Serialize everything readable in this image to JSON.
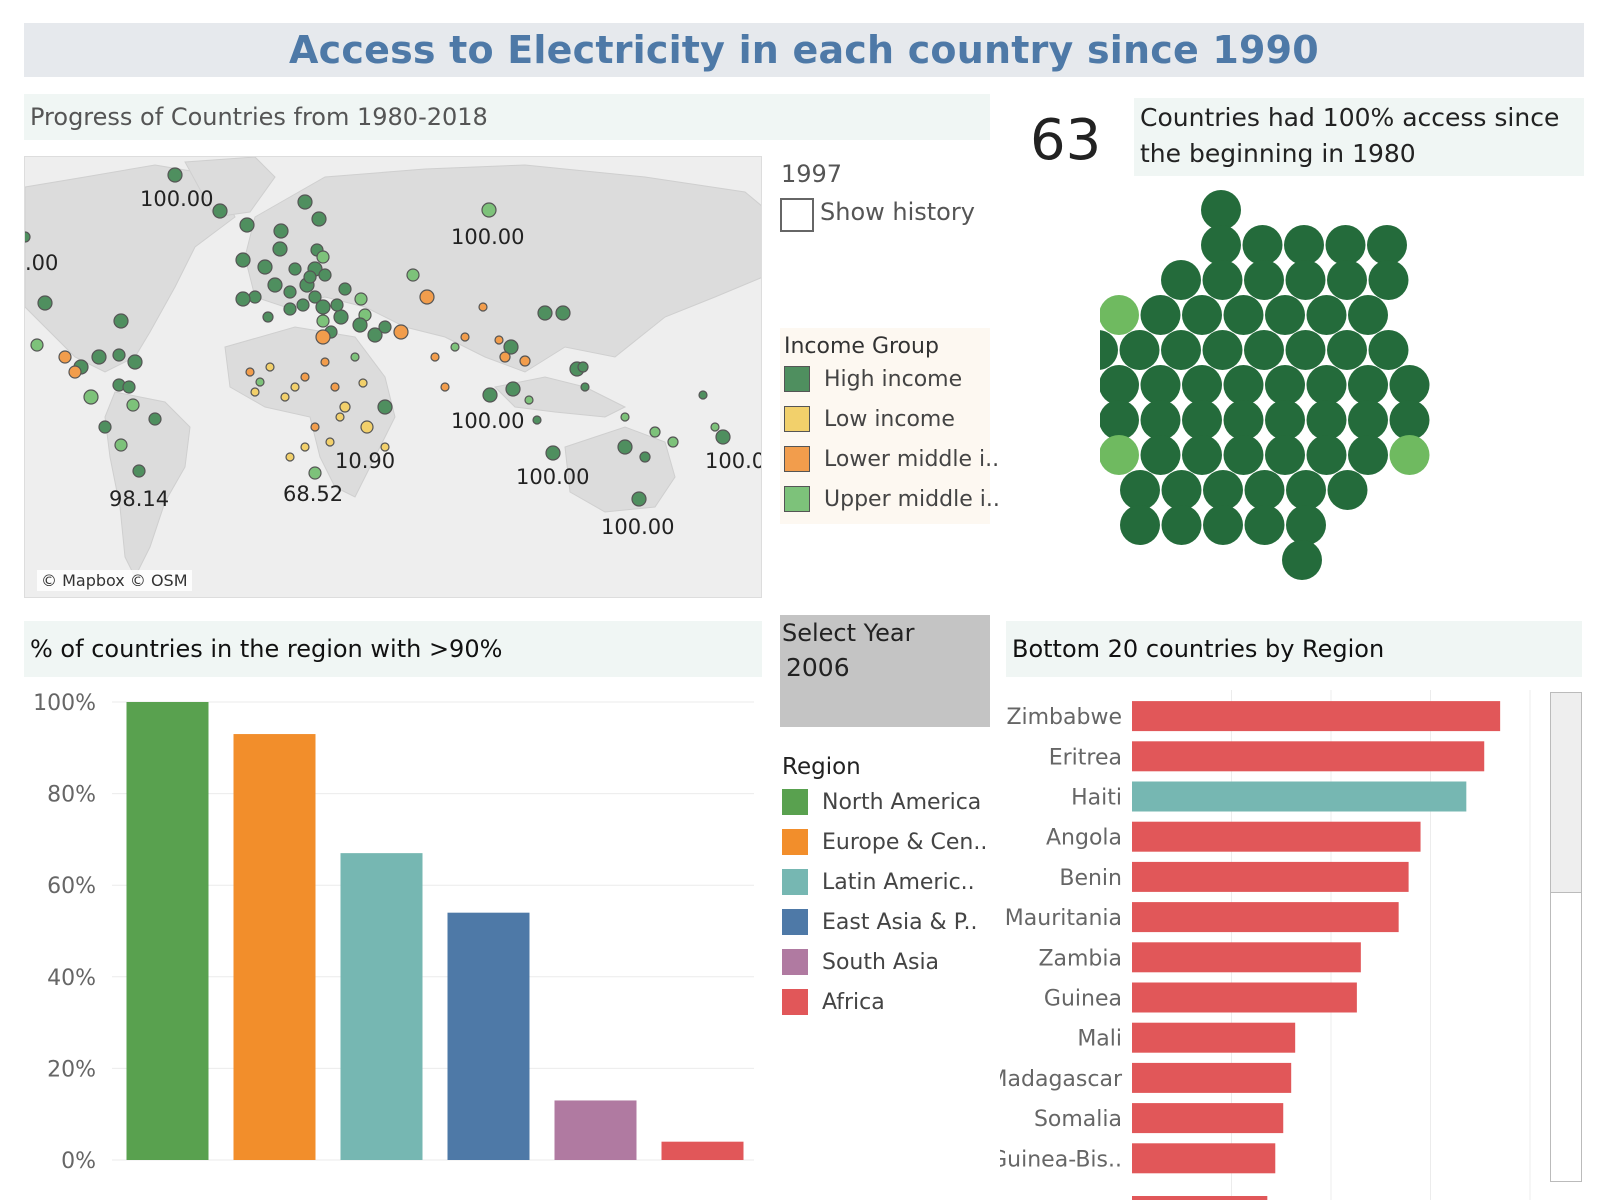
{
  "title": "Access to Electricity in each country since 1990",
  "map_panel": {
    "title": "Progress of Countries from 1980-2018",
    "year": "1997",
    "show_history_label": "Show history",
    "credit": "© Mapbox © OSM",
    "labels": [
      "100.00",
      ".00",
      "100.00",
      "100.00",
      "10.90",
      "68.52",
      "98.14",
      "100.00",
      "100.0",
      "100.00"
    ]
  },
  "income_legend": {
    "title": "Income Group",
    "items": [
      {
        "label": "High income",
        "color": "#4f8f5f"
      },
      {
        "label": "Low income",
        "color": "#f2d06b"
      },
      {
        "label": "Lower middle i..",
        "color": "#f29d4c"
      },
      {
        "label": "Upper middle i..",
        "color": "#7dc27a"
      }
    ]
  },
  "kpi": {
    "number": "63",
    "description": "Countries had 100% access since the beginning in 1980"
  },
  "bubble_colors": {
    "main": "#246b3b",
    "light": "#6fba60"
  },
  "select_year": {
    "label": "Select Year",
    "value": "2006"
  },
  "region_legend": {
    "title": "Region",
    "items": [
      {
        "label": "North America",
        "color": "#59a14f"
      },
      {
        "label": "Europe & Cen..",
        "color": "#f28e2b"
      },
      {
        "label": "Latin Americ..",
        "color": "#76b7b2"
      },
      {
        "label": "East Asia & P..",
        "color": "#4e79a7"
      },
      {
        "label": "South Asia",
        "color": "#b07aa1"
      },
      {
        "label": "Africa",
        "color": "#e15759"
      }
    ]
  },
  "chart_data": [
    {
      "type": "bar",
      "title": "% of countries in the region with >90%",
      "categories": [
        "North America",
        "Europe & Cen..",
        "Latin Americ..",
        "East Asia & P..",
        "South Asia",
        "Africa"
      ],
      "values": [
        100,
        93,
        67,
        54,
        13,
        4
      ],
      "colors": [
        "#59a14f",
        "#f28e2b",
        "#76b7b2",
        "#4e79a7",
        "#b07aa1",
        "#e15759"
      ],
      "ylim": [
        0,
        100
      ],
      "yticks": [
        "0%",
        "20%",
        "40%",
        "60%",
        "80%",
        "100%"
      ],
      "ytick_values": [
        0,
        20,
        40,
        60,
        80,
        100
      ],
      "grid": true
    },
    {
      "type": "bar",
      "orientation": "horizontal",
      "title": "Bottom 20 countries by Region",
      "categories": [
        "Zimbabwe",
        "Eritrea",
        "Haiti",
        "Angola",
        "Benin",
        "Mauritania",
        "Zambia",
        "Guinea",
        "Mali",
        "Madagascar",
        "Somalia",
        "Guinea-Bis.."
      ],
      "values": [
        37,
        35.4,
        33.6,
        29,
        27.8,
        26.8,
        23,
        22.6,
        16.4,
        16,
        15.2,
        14.4
      ],
      "regions": [
        "Africa",
        "Africa",
        "Latin Americ..",
        "Africa",
        "Africa",
        "Africa",
        "Africa",
        "Africa",
        "Africa",
        "Africa",
        "Africa",
        "Africa"
      ],
      "colors": [
        "#e15759",
        "#e15759",
        "#76b7b2",
        "#e15759",
        "#e15759",
        "#e15759",
        "#e15759",
        "#e15759",
        "#e15759",
        "#e15759",
        "#e15759",
        "#e15759"
      ],
      "xlim": [
        0,
        40
      ],
      "grid": true
    }
  ]
}
